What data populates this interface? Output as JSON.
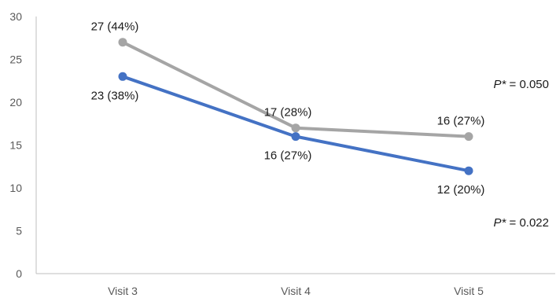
{
  "chart_data": {
    "type": "line",
    "title": "",
    "xlabel": "",
    "ylabel": "",
    "categories": [
      "Visit 3",
      "Visit 4",
      "Visit 5"
    ],
    "ylim": [
      0,
      30
    ],
    "yticks": [
      0,
      5,
      10,
      15,
      20,
      25,
      30
    ],
    "grid": false,
    "legend": "none",
    "series": [
      {
        "color": "#a5a5a5",
        "values": [
          27,
          17,
          16
        ],
        "labels": [
          "27 (44%)",
          "17 (28%)",
          "16 (27%)"
        ],
        "label_side": [
          "above",
          "above",
          "above"
        ],
        "p_value": {
          "prefix": "P",
          "star": "*",
          "text": " = 0.050"
        }
      },
      {
        "color": "#4472c4",
        "values": [
          23,
          16,
          12
        ],
        "labels": [
          "23 (38%)",
          "16 (27%)",
          "12 (20%)"
        ],
        "label_side": [
          "below",
          "below",
          "below"
        ],
        "p_value": {
          "prefix": "P",
          "star": "*",
          "text": " = 0.022"
        }
      }
    ]
  }
}
